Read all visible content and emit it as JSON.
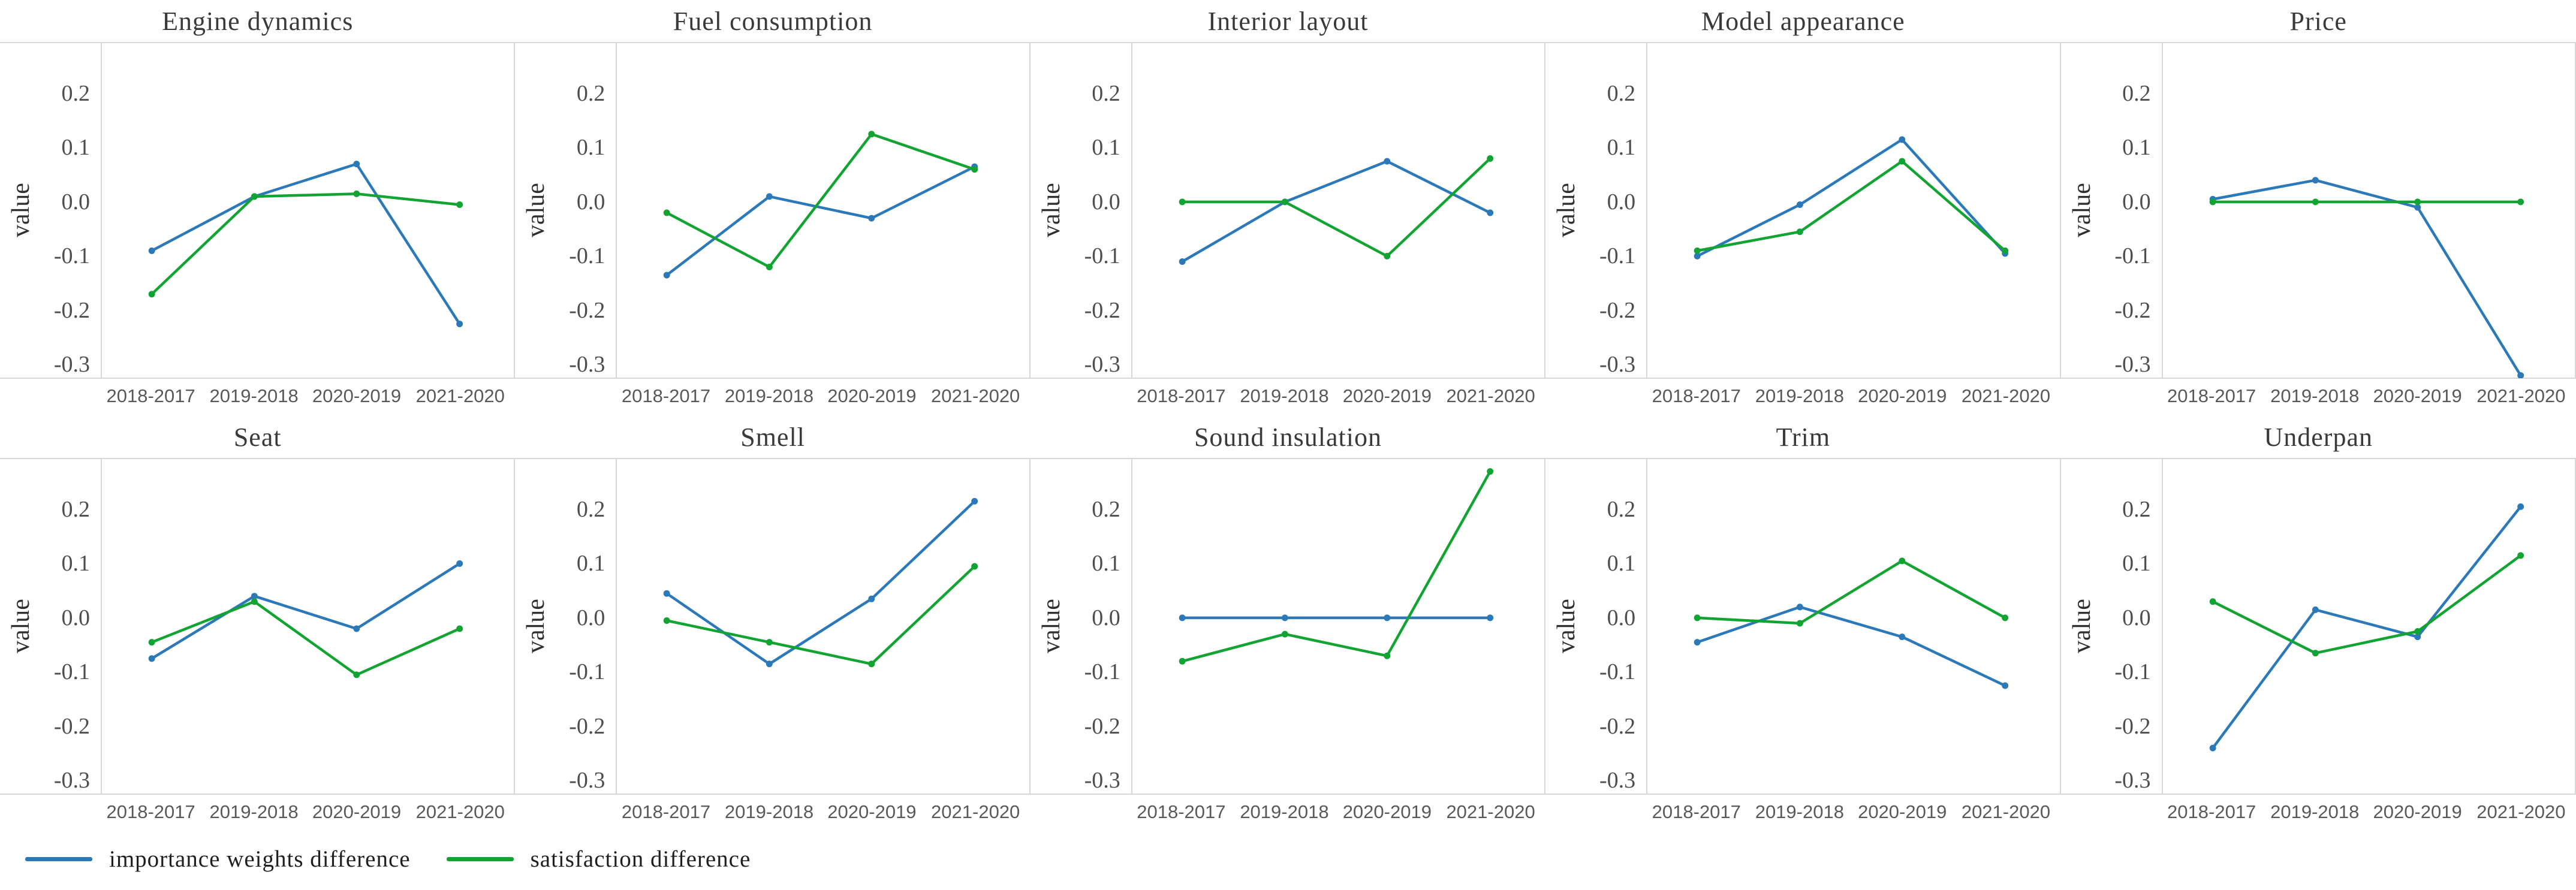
{
  "figure": {
    "ylabel": "value",
    "yticks": [
      0.2,
      0.1,
      0.0,
      -0.1,
      -0.2,
      -0.3
    ],
    "ymax": 0.295,
    "ymin": -0.325,
    "categories": [
      "2018-2017",
      "2019-2018",
      "2020-2019",
      "2021-2020"
    ]
  },
  "legend": {
    "items": [
      {
        "label": "importance weights difference",
        "color": "#2C79B9"
      },
      {
        "label": "satisfaction difference",
        "color": "#12A432"
      }
    ]
  },
  "chart_data": [
    {
      "type": "line",
      "title": "Engine dynamics",
      "xlabel": "",
      "ylabel": "value",
      "categories": [
        "2018-2017",
        "2019-2018",
        "2020-2019",
        "2021-2020"
      ],
      "ylim": [
        -0.325,
        0.295
      ],
      "grid": false,
      "legend_position": "bottom-left",
      "series": [
        {
          "name": "importance weights difference",
          "color": "#2C79B9",
          "values": [
            -0.09,
            0.01,
            0.07,
            -0.225
          ]
        },
        {
          "name": "satisfaction difference",
          "color": "#12A432",
          "values": [
            -0.17,
            0.01,
            0.015,
            -0.005
          ]
        }
      ]
    },
    {
      "type": "line",
      "title": "Fuel consumption",
      "xlabel": "",
      "ylabel": "value",
      "categories": [
        "2018-2017",
        "2019-2018",
        "2020-2019",
        "2021-2020"
      ],
      "ylim": [
        -0.325,
        0.295
      ],
      "grid": false,
      "legend_position": "bottom-left",
      "series": [
        {
          "name": "importance weights difference",
          "color": "#2C79B9",
          "values": [
            -0.135,
            0.01,
            -0.03,
            0.065
          ]
        },
        {
          "name": "satisfaction difference",
          "color": "#12A432",
          "values": [
            -0.02,
            -0.12,
            0.125,
            0.06
          ]
        }
      ]
    },
    {
      "type": "line",
      "title": "Interior layout",
      "xlabel": "",
      "ylabel": "value",
      "categories": [
        "2018-2017",
        "2019-2018",
        "2020-2019",
        "2021-2020"
      ],
      "ylim": [
        -0.325,
        0.295
      ],
      "grid": false,
      "legend_position": "bottom-left",
      "series": [
        {
          "name": "importance weights difference",
          "color": "#2C79B9",
          "values": [
            -0.11,
            0.0,
            0.075,
            -0.02
          ]
        },
        {
          "name": "satisfaction difference",
          "color": "#12A432",
          "values": [
            0.0,
            0.0,
            -0.1,
            0.08
          ]
        }
      ]
    },
    {
      "type": "line",
      "title": "Model appearance",
      "xlabel": "",
      "ylabel": "value",
      "categories": [
        "2018-2017",
        "2019-2018",
        "2020-2019",
        "2021-2020"
      ],
      "ylim": [
        -0.325,
        0.295
      ],
      "grid": false,
      "legend_position": "bottom-left",
      "series": [
        {
          "name": "importance weights difference",
          "color": "#2C79B9",
          "values": [
            -0.1,
            -0.005,
            0.115,
            -0.095
          ]
        },
        {
          "name": "satisfaction difference",
          "color": "#12A432",
          "values": [
            -0.09,
            -0.055,
            0.075,
            -0.09
          ]
        }
      ]
    },
    {
      "type": "line",
      "title": "Price",
      "xlabel": "",
      "ylabel": "value",
      "categories": [
        "2018-2017",
        "2019-2018",
        "2020-2019",
        "2021-2020"
      ],
      "ylim": [
        -0.325,
        0.295
      ],
      "grid": false,
      "legend_position": "bottom-left",
      "series": [
        {
          "name": "importance weights difference",
          "color": "#2C79B9",
          "values": [
            0.005,
            0.04,
            -0.01,
            -0.32
          ]
        },
        {
          "name": "satisfaction difference",
          "color": "#12A432",
          "values": [
            0.0,
            0.0,
            0.0,
            0.0
          ]
        }
      ]
    },
    {
      "type": "line",
      "title": "Seat",
      "xlabel": "",
      "ylabel": "value",
      "categories": [
        "2018-2017",
        "2019-2018",
        "2020-2019",
        "2021-2020"
      ],
      "ylim": [
        -0.325,
        0.295
      ],
      "grid": false,
      "legend_position": "bottom-left",
      "series": [
        {
          "name": "importance weights difference",
          "color": "#2C79B9",
          "values": [
            -0.075,
            0.04,
            -0.02,
            0.1
          ]
        },
        {
          "name": "satisfaction difference",
          "color": "#12A432",
          "values": [
            -0.045,
            0.03,
            -0.105,
            -0.02
          ]
        }
      ]
    },
    {
      "type": "line",
      "title": "Smell",
      "xlabel": "",
      "ylabel": "value",
      "categories": [
        "2018-2017",
        "2019-2018",
        "2020-2019",
        "2021-2020"
      ],
      "ylim": [
        -0.325,
        0.295
      ],
      "grid": false,
      "legend_position": "bottom-left",
      "series": [
        {
          "name": "importance weights difference",
          "color": "#2C79B9",
          "values": [
            0.045,
            -0.085,
            0.035,
            0.215
          ]
        },
        {
          "name": "satisfaction difference",
          "color": "#12A432",
          "values": [
            -0.005,
            -0.045,
            -0.085,
            0.095
          ]
        }
      ]
    },
    {
      "type": "line",
      "title": "Sound insulation",
      "xlabel": "",
      "ylabel": "value",
      "categories": [
        "2018-2017",
        "2019-2018",
        "2020-2019",
        "2021-2020"
      ],
      "ylim": [
        -0.325,
        0.295
      ],
      "grid": false,
      "legend_position": "bottom-left",
      "series": [
        {
          "name": "importance weights difference",
          "color": "#2C79B9",
          "values": [
            0.0,
            0.0,
            0.0,
            0.0
          ]
        },
        {
          "name": "satisfaction difference",
          "color": "#12A432",
          "values": [
            -0.08,
            -0.03,
            -0.07,
            0.27
          ]
        }
      ]
    },
    {
      "type": "line",
      "title": "Trim",
      "xlabel": "",
      "ylabel": "value",
      "categories": [
        "2018-2017",
        "2019-2018",
        "2020-2019",
        "2021-2020"
      ],
      "ylim": [
        -0.325,
        0.295
      ],
      "grid": false,
      "legend_position": "bottom-left",
      "series": [
        {
          "name": "importance weights difference",
          "color": "#2C79B9",
          "values": [
            -0.045,
            0.02,
            -0.035,
            -0.125
          ]
        },
        {
          "name": "satisfaction difference",
          "color": "#12A432",
          "values": [
            0.0,
            -0.01,
            0.105,
            0.0
          ]
        }
      ]
    },
    {
      "type": "line",
      "title": "Underpan",
      "xlabel": "",
      "ylabel": "value",
      "categories": [
        "2018-2017",
        "2019-2018",
        "2020-2019",
        "2021-2020"
      ],
      "ylim": [
        -0.325,
        0.295
      ],
      "grid": false,
      "legend_position": "bottom-left",
      "series": [
        {
          "name": "importance weights difference",
          "color": "#2C79B9",
          "values": [
            -0.24,
            0.015,
            -0.035,
            0.205
          ]
        },
        {
          "name": "satisfaction difference",
          "color": "#12A432",
          "values": [
            0.03,
            -0.065,
            -0.025,
            0.115
          ]
        }
      ]
    }
  ]
}
